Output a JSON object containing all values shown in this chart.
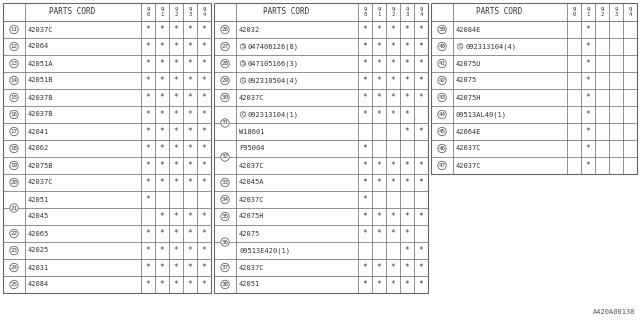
{
  "col_header": "PARTS CORD",
  "year_cols": [
    "9\n0",
    "9\n1",
    "9\n2",
    "9\n3",
    "9\n4"
  ],
  "footnote": "A420A00138",
  "panels": [
    {
      "rows": [
        {
          "num": "11",
          "part": "42037C",
          "prefix": "",
          "marks": [
            1,
            1,
            1,
            1,
            1
          ]
        },
        {
          "num": "12",
          "part": "42064",
          "prefix": "",
          "marks": [
            1,
            1,
            1,
            1,
            1
          ]
        },
        {
          "num": "13",
          "part": "42051A",
          "prefix": "",
          "marks": [
            1,
            1,
            1,
            1,
            1
          ]
        },
        {
          "num": "14",
          "part": "42051B",
          "prefix": "",
          "marks": [
            1,
            1,
            1,
            1,
            1
          ]
        },
        {
          "num": "15",
          "part": "42037B",
          "prefix": "",
          "marks": [
            1,
            1,
            1,
            1,
            1
          ]
        },
        {
          "num": "16",
          "part": "42037B",
          "prefix": "",
          "marks": [
            1,
            1,
            1,
            1,
            1
          ]
        },
        {
          "num": "17",
          "part": "42041",
          "prefix": "",
          "marks": [
            1,
            1,
            1,
            1,
            1
          ]
        },
        {
          "num": "18",
          "part": "42062",
          "prefix": "",
          "marks": [
            1,
            1,
            1,
            1,
            1
          ]
        },
        {
          "num": "19",
          "part": "42075B",
          "prefix": "",
          "marks": [
            1,
            1,
            1,
            1,
            1
          ]
        },
        {
          "num": "20",
          "part": "42037C",
          "prefix": "",
          "marks": [
            1,
            1,
            1,
            1,
            1
          ]
        },
        {
          "num": "21",
          "part": "42051",
          "prefix": "",
          "marks": [
            1,
            0,
            0,
            0,
            0
          ],
          "sub": true
        },
        {
          "num": "21",
          "part": "42045",
          "prefix": "",
          "marks": [
            0,
            1,
            1,
            1,
            1
          ],
          "sub": true
        },
        {
          "num": "22",
          "part": "42065",
          "prefix": "",
          "marks": [
            1,
            1,
            1,
            1,
            1
          ]
        },
        {
          "num": "23",
          "part": "42025",
          "prefix": "",
          "marks": [
            1,
            1,
            1,
            1,
            1
          ]
        },
        {
          "num": "24",
          "part": "42031",
          "prefix": "",
          "marks": [
            1,
            1,
            1,
            1,
            1
          ]
        },
        {
          "num": "25",
          "part": "42084",
          "prefix": "",
          "marks": [
            1,
            1,
            1,
            1,
            1
          ]
        }
      ]
    },
    {
      "rows": [
        {
          "num": "26",
          "part": "42032",
          "prefix": "",
          "marks": [
            1,
            1,
            1,
            1,
            1
          ]
        },
        {
          "num": "27",
          "part": "047406126(8)",
          "prefix": "S",
          "marks": [
            1,
            1,
            1,
            1,
            1
          ]
        },
        {
          "num": "28",
          "part": "047105166(3)",
          "prefix": "S",
          "marks": [
            1,
            1,
            1,
            1,
            1
          ]
        },
        {
          "num": "29",
          "part": "092310504(4)",
          "prefix": "C",
          "marks": [
            1,
            1,
            1,
            1,
            1
          ]
        },
        {
          "num": "30",
          "part": "42037C",
          "prefix": "",
          "marks": [
            1,
            1,
            1,
            1,
            1
          ]
        },
        {
          "num": "31",
          "part": "092313104(1)",
          "prefix": "C",
          "marks": [
            1,
            1,
            1,
            1,
            0
          ],
          "sub": true
        },
        {
          "num": "31",
          "part": "W18601",
          "prefix": "",
          "marks": [
            0,
            0,
            0,
            1,
            1
          ],
          "sub": true
        },
        {
          "num": "32",
          "part": "F95004",
          "prefix": "",
          "marks": [
            1,
            0,
            0,
            0,
            0
          ],
          "sub": true
        },
        {
          "num": "32",
          "part": "42037C",
          "prefix": "",
          "marks": [
            1,
            1,
            1,
            1,
            1
          ],
          "sub": true
        },
        {
          "num": "33",
          "part": "42045A",
          "prefix": "",
          "marks": [
            1,
            1,
            1,
            1,
            1
          ]
        },
        {
          "num": "34",
          "part": "42037C",
          "prefix": "",
          "marks": [
            1,
            0,
            0,
            0,
            0
          ]
        },
        {
          "num": "35",
          "part": "42075H",
          "prefix": "",
          "marks": [
            1,
            1,
            1,
            1,
            1
          ]
        },
        {
          "num": "36",
          "part": "42075",
          "prefix": "",
          "marks": [
            1,
            1,
            1,
            1,
            0
          ],
          "sub": true
        },
        {
          "num": "36",
          "part": "09513E420(1)",
          "prefix": "",
          "marks": [
            0,
            0,
            0,
            1,
            1
          ],
          "sub": true
        },
        {
          "num": "37",
          "part": "42037C",
          "prefix": "",
          "marks": [
            1,
            1,
            1,
            1,
            1
          ]
        },
        {
          "num": "38",
          "part": "42051",
          "prefix": "",
          "marks": [
            1,
            1,
            1,
            1,
            1
          ]
        }
      ]
    },
    {
      "rows": [
        {
          "num": "39",
          "part": "42084E",
          "prefix": "",
          "marks": [
            0,
            1,
            0,
            0,
            0
          ]
        },
        {
          "num": "40",
          "part": "092313104(4)",
          "prefix": "C",
          "marks": [
            0,
            1,
            0,
            0,
            0
          ]
        },
        {
          "num": "41",
          "part": "42075U",
          "prefix": "",
          "marks": [
            0,
            1,
            0,
            0,
            0
          ]
        },
        {
          "num": "42",
          "part": "42075",
          "prefix": "",
          "marks": [
            0,
            1,
            0,
            0,
            0
          ]
        },
        {
          "num": "43",
          "part": "42075H",
          "prefix": "",
          "marks": [
            0,
            1,
            0,
            0,
            0
          ]
        },
        {
          "num": "44",
          "part": "09513AL40(1)",
          "prefix": "",
          "marks": [
            0,
            1,
            0,
            0,
            0
          ]
        },
        {
          "num": "45",
          "part": "42064E",
          "prefix": "",
          "marks": [
            0,
            1,
            0,
            0,
            0
          ]
        },
        {
          "num": "46",
          "part": "42037C",
          "prefix": "",
          "marks": [
            0,
            1,
            0,
            0,
            0
          ]
        },
        {
          "num": "47",
          "part": "42037C",
          "prefix": "",
          "marks": [
            0,
            1,
            0,
            0,
            0
          ]
        }
      ]
    }
  ]
}
